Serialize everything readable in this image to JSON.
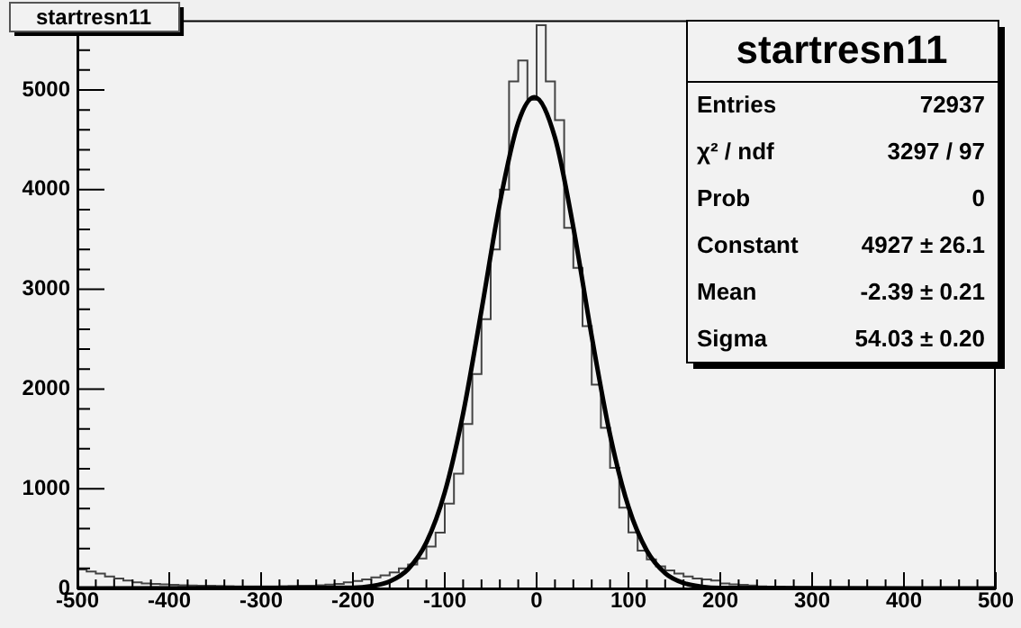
{
  "chart_data": {
    "type": "histogram",
    "title": "startresn11",
    "annotations": [
      "startresn11",
      "Entries",
      "72937",
      "χ² / ndf",
      "3297 / 97",
      "Prob",
      "0",
      "Constant",
      "4927 ± 26.1",
      "Mean",
      "-2.39 ± 0.21",
      "Sigma",
      "54.03 ± 0.20"
    ],
    "bins": [
      -500,
      -490,
      -480,
      -470,
      -460,
      -450,
      -440,
      -430,
      -420,
      -410,
      -400,
      -390,
      -380,
      -370,
      -360,
      -350,
      -340,
      -330,
      -320,
      -310,
      -300,
      -290,
      -280,
      -270,
      -260,
      -250,
      -240,
      -230,
      -220,
      -210,
      -200,
      -190,
      -180,
      -170,
      -160,
      -150,
      -140,
      -130,
      -120,
      -110,
      -100,
      -90,
      -80,
      -70,
      -60,
      -50,
      -40,
      -30,
      -20,
      -10,
      0,
      10,
      20,
      30,
      40,
      50,
      60,
      70,
      80,
      90,
      100,
      110,
      120,
      130,
      140,
      150,
      160,
      170,
      180,
      190,
      200,
      210,
      220,
      230,
      240,
      250,
      260,
      270,
      280,
      290,
      300,
      310,
      320,
      330,
      340,
      350,
      360,
      370,
      380,
      390,
      400,
      410,
      420,
      430,
      440,
      450,
      460,
      470,
      480,
      490,
      500
    ],
    "values": [
      190,
      170,
      150,
      120,
      100,
      80,
      60,
      50,
      45,
      40,
      35,
      32,
      30,
      28,
      26,
      24,
      22,
      20,
      20,
      20,
      20,
      20,
      22,
      24,
      26,
      28,
      32,
      38,
      45,
      60,
      75,
      90,
      110,
      130,
      160,
      200,
      240,
      300,
      420,
      560,
      850,
      1150,
      1650,
      2150,
      2700,
      3400,
      4000,
      5086,
      5296,
      4900,
      5650,
      5086,
      4698,
      3617,
      3216,
      2630,
      2043,
      1611,
      1210,
      809,
      562,
      380,
      290,
      220,
      180,
      150,
      120,
      100,
      90,
      80,
      50,
      40,
      35,
      30,
      20,
      18,
      15,
      12,
      10,
      10,
      8,
      8,
      7,
      7,
      6,
      6,
      5,
      5,
      5,
      5,
      5,
      4,
      4,
      4,
      4,
      3,
      3,
      3,
      3,
      3
    ],
    "color": "#444444",
    "series": [
      {
        "type": "line",
        "color": "#000000",
        "x": [
          -500,
          -200,
          -180,
          -160,
          -140,
          -120,
          -100,
          -80,
          -60,
          -40,
          -20,
          -2.39,
          20,
          40,
          60,
          80,
          100,
          120,
          140,
          160,
          180,
          200,
          500
        ],
        "values": [
          0,
          6,
          22,
          70,
          192,
          461,
          964,
          1756,
          2791,
          3868,
          4672,
          4927,
          4521,
          3621,
          2529,
          1540,
          818,
          379,
          153,
          54,
          17,
          4,
          0
        ]
      }
    ],
    "xlim": [
      -500,
      500
    ],
    "ylim": [
      0,
      5700
    ],
    "xticks": [
      -500,
      -400,
      -300,
      -200,
      -100,
      0,
      100,
      200,
      300,
      400,
      500
    ],
    "yticks": [
      0,
      1000,
      2000,
      3000,
      4000,
      5000
    ],
    "grid": false,
    "legend": false
  }
}
